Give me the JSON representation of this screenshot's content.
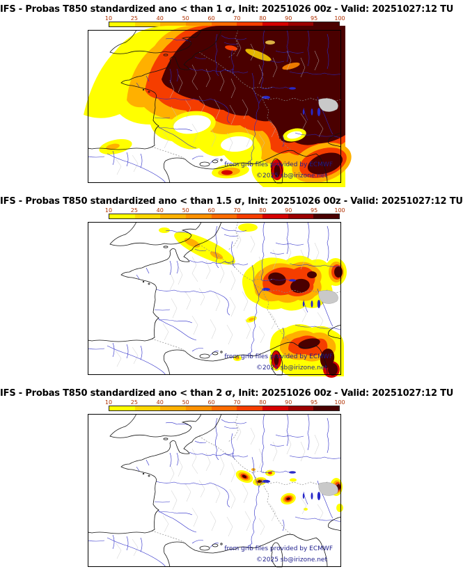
{
  "page": {
    "background": "#ffffff"
  },
  "colorbar": {
    "tick_labels": [
      "10",
      "25",
      "40",
      "50",
      "60",
      "70",
      "80",
      "90",
      "95",
      "100"
    ],
    "segment_colors": [
      "#ffff00",
      "#ffd700",
      "#ffb000",
      "#ff9000",
      "#ff6a00",
      "#f53d00",
      "#d40000",
      "#9b0000",
      "#4a0000"
    ],
    "label_color": "#b03000"
  },
  "watermark": {
    "line1": "from grib files provided by ECMWF",
    "line2": "©2025 sb@irizone.net",
    "color": "#1d1d8c"
  },
  "map_colors": {
    "rivers": "#2929c8",
    "coastline": "#111111",
    "borders": "#8a8a8a",
    "department_lines": "#c4c4c4",
    "lagoon_fill": "#c9c9c9"
  },
  "panels": [
    {
      "id": "sigma-1.0",
      "threshold": "1 σ",
      "title": "IFS - Probas T850  standardized ano < than 1 σ, Init: 20251026 00z - Valid: 20251027:12 TU"
    },
    {
      "id": "sigma-1.5",
      "threshold": "1.5 σ",
      "title": "IFS - Probas T850  standardized ano < than 1.5 σ, Init: 20251026 00z - Valid: 20251027:12 TU"
    },
    {
      "id": "sigma-2.0",
      "threshold": "2 σ",
      "title": "IFS - Probas T850  standardized ano < than 2 σ, Init: 20251026 00z - Valid: 20251027:12 TU"
    }
  ]
}
